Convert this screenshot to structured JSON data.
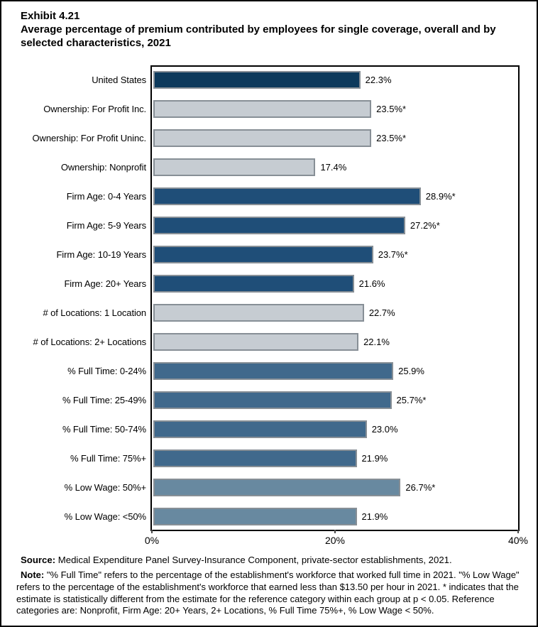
{
  "title": {
    "exhibit": "Exhibit 4.21",
    "text": "Average percentage of premium contributed by employees for single coverage, overall and by selected characteristics, 2021"
  },
  "chart_data": {
    "type": "bar",
    "orientation": "horizontal",
    "title": "Average percentage of premium contributed by employees for single coverage, overall and by selected characteristics, 2021",
    "xlabel": "",
    "ylabel": "",
    "xlim": [
      0,
      40
    ],
    "x_ticks": [
      "0%",
      "20%",
      "40%"
    ],
    "x_tick_values": [
      0,
      20,
      40
    ],
    "grid": false,
    "legend": "none",
    "categories": [
      "United States",
      "Ownership: For Profit Inc.",
      "Ownership: For Profit Uninc.",
      "Ownership: Nonprofit",
      "Firm Age: 0-4 Years",
      "Firm Age: 5-9 Years",
      "Firm Age: 10-19 Years",
      "Firm Age: 20+ Years",
      "# of Locations: 1 Location",
      "# of Locations: 2+ Locations",
      "% Full Time: 0-24%",
      "% Full Time: 25-49%",
      "% Full Time: 50-74%",
      "% Full Time: 75%+",
      "% Low Wage: 50%+",
      "% Low Wage: <50%"
    ],
    "values": [
      22.3,
      23.5,
      23.5,
      17.4,
      28.9,
      27.2,
      23.7,
      21.6,
      22.7,
      22.1,
      25.9,
      25.7,
      23.0,
      21.9,
      26.7,
      21.9
    ],
    "value_labels": [
      "22.3%",
      "23.5%*",
      "23.5%*",
      "17.4%",
      "28.9%*",
      "27.2%*",
      "23.7%*",
      "21.6%",
      "22.7%",
      "22.1%",
      "25.9%",
      "25.7%*",
      "23.0%",
      "21.9%",
      "26.7%*",
      "21.9%"
    ],
    "groups": [
      "us",
      "ownership",
      "ownership",
      "ownership",
      "firm_age",
      "firm_age",
      "firm_age",
      "firm_age",
      "locations",
      "locations",
      "full_time",
      "full_time",
      "full_time",
      "full_time",
      "low_wage",
      "low_wage"
    ],
    "palette": {
      "us": "#0d3a5c",
      "ownership": "#c6ccd2",
      "firm_age": "#1f4e78",
      "locations": "#c6ccd2",
      "full_time": "#40698c",
      "low_wage": "#6889a0",
      "bar_border": "#878f96",
      "axis": "#000000"
    }
  },
  "footer": {
    "source_label": "Source:",
    "source_text": " Medical Expenditure Panel Survey-Insurance Component, private-sector establishments, 2021.",
    "note_label": "Note:",
    "note_text": " \"% Full Time\" refers to the percentage of the establishment's workforce that worked full time in 2021. \"% Low Wage\" refers to the percentage of the establishment's workforce that earned less than $13.50 per hour in 2021. * indicates that the estimate is statistically different from the estimate for the reference category within each group at p < 0.05.  Reference categories are: Nonprofit, Firm Age: 20+ Years, 2+ Locations, % Full Time 75%+, % Low Wage < 50%."
  }
}
